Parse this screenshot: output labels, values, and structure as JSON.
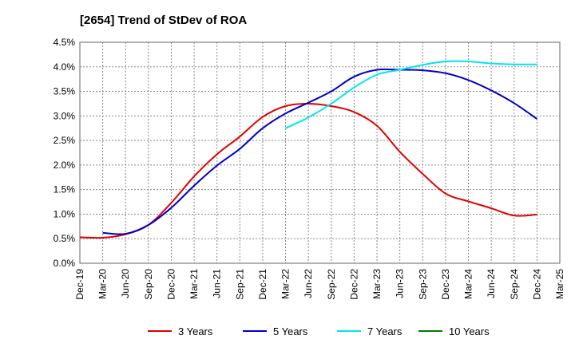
{
  "chart_data": {
    "type": "line",
    "title": "[2654]  Trend of StDev of ROA",
    "xlabel": "",
    "ylabel": "",
    "x_categories": [
      "Dec-19",
      "Mar-20",
      "Jun-20",
      "Sep-20",
      "Dec-20",
      "Mar-21",
      "Jun-21",
      "Sep-21",
      "Dec-21",
      "Mar-22",
      "Jun-22",
      "Sep-22",
      "Dec-22",
      "Mar-23",
      "Jun-23",
      "Sep-23",
      "Dec-23",
      "Mar-24",
      "Jun-24",
      "Sep-24",
      "Dec-24",
      "Mar-25"
    ],
    "y_ticks": [
      "0.0%",
      "0.5%",
      "1.0%",
      "1.5%",
      "2.0%",
      "2.5%",
      "3.0%",
      "3.5%",
      "4.0%",
      "4.5%"
    ],
    "ylim": [
      0,
      4.5
    ],
    "grid": true,
    "legend_position": "bottom",
    "series": [
      {
        "name": "3 Years",
        "color": "#e00000",
        "values": [
          0.53,
          0.52,
          0.59,
          0.78,
          1.23,
          1.77,
          2.22,
          2.58,
          2.98,
          3.2,
          3.25,
          3.2,
          3.08,
          2.8,
          2.27,
          1.82,
          1.42,
          1.26,
          1.12,
          0.97,
          0.99,
          null
        ]
      },
      {
        "name": "5 Years",
        "color": "#0000c8",
        "values": [
          null,
          0.62,
          0.6,
          0.78,
          1.13,
          1.58,
          1.99,
          2.33,
          2.75,
          3.05,
          3.27,
          3.5,
          3.8,
          3.94,
          3.94,
          3.93,
          3.87,
          3.73,
          3.52,
          3.26,
          2.94,
          null
        ]
      },
      {
        "name": "7 Years",
        "color": "#00e5ee",
        "values": [
          null,
          null,
          null,
          null,
          null,
          null,
          null,
          null,
          null,
          2.75,
          2.97,
          3.25,
          3.58,
          3.84,
          3.94,
          4.04,
          4.11,
          4.11,
          4.07,
          4.05,
          4.05,
          null
        ]
      },
      {
        "name": "10 Years",
        "color": "#008000",
        "values": [
          null,
          null,
          null,
          null,
          null,
          null,
          null,
          null,
          null,
          null,
          null,
          null,
          null,
          null,
          null,
          null,
          null,
          null,
          null,
          null,
          null,
          null
        ]
      }
    ]
  }
}
